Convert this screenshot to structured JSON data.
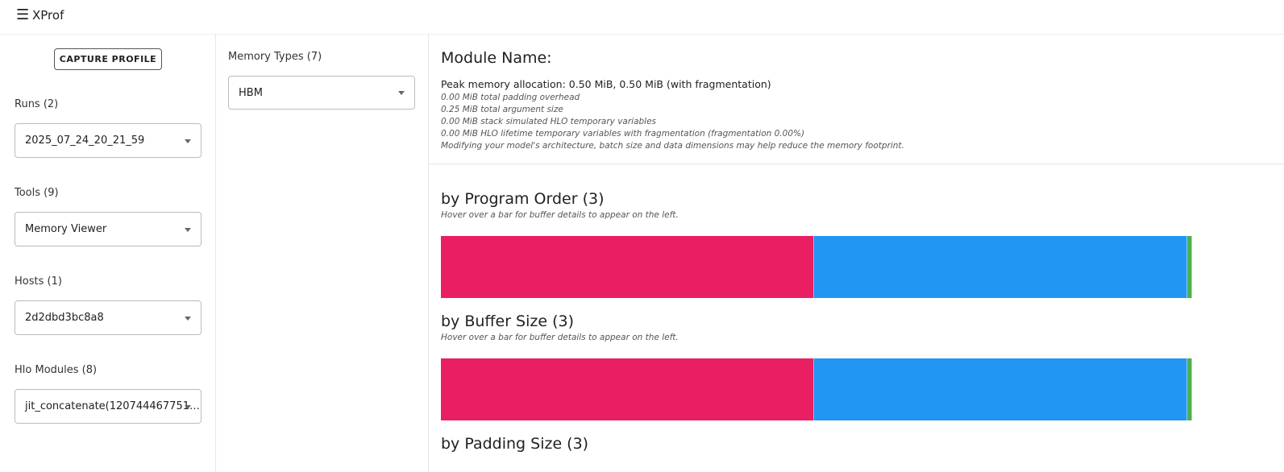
{
  "header": {
    "title": "XProf"
  },
  "sidebar": {
    "button": "CAPTURE PROFILE",
    "selects": [
      {
        "label": "Runs (2)",
        "value": "2025_07_24_20_21_59"
      },
      {
        "label": "Tools (9)",
        "value": "Memory Viewer"
      },
      {
        "label": "Hosts (1)",
        "value": "2d2dbd3bc8a8"
      },
      {
        "label": "Hlo Modules (8)",
        "value": "jit_concatenate(120744467751…"
      }
    ]
  },
  "memory_types": {
    "label": "Memory Types (7)",
    "value": "HBM"
  },
  "module": {
    "title": "Module Name:",
    "peak": "Peak memory allocation: 0.50 MiB, 0.50 MiB (with fragmentation)",
    "details": [
      "0.00 MiB total padding overhead",
      "0.25 MiB total argument size",
      "0.00 MiB stack simulated HLO temporary variables",
      "0.00 MiB HLO lifetime temporary variables with fragmentation (fragmentation 0.00%)",
      "Modifying your model's architecture, batch size and data dimensions may help reduce the memory footprint."
    ]
  },
  "sections": [
    {
      "title": "by Program Order (3)",
      "hint": "Hover over a bar for buffer details to appear on the left.",
      "buffers": [
        {
          "color": "#e91e63",
          "size": 0.25
        },
        {
          "color": "#2196f3",
          "size": 0.25
        },
        {
          "color": "#4caf50",
          "size": 0.003
        }
      ]
    },
    {
      "title": "by Buffer Size (3)",
      "hint": "Hover over a bar for buffer details to appear on the left.",
      "buffers": [
        {
          "color": "#e91e63",
          "size": 0.25
        },
        {
          "color": "#2196f3",
          "size": 0.25
        },
        {
          "color": "#4caf50",
          "size": 0.003
        }
      ]
    },
    {
      "title": "by Padding Size (3)"
    }
  ]
}
